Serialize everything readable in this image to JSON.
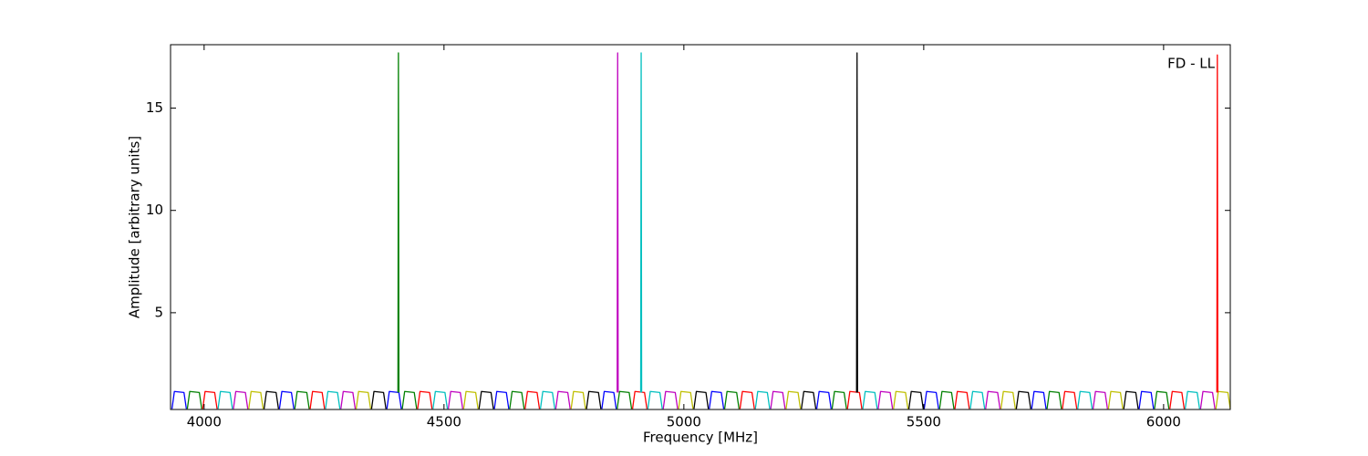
{
  "chart_data": {
    "type": "line",
    "x_label": "Frequency [MHz]",
    "y_label": "Amplitude [arbitrary units]",
    "annotation": "FD - LL",
    "xlim": [
      3930,
      6139
    ],
    "xticks": [
      4000,
      4500,
      5000,
      5500,
      6000
    ],
    "ylim": [
      0.27,
      18.1
    ],
    "yticks": [
      5,
      10,
      15
    ],
    "series": [
      {
        "color": "#0000ff",
        "x": [
          3933,
          3938,
          3958,
          3963,
          null,
          4157,
          4162,
          4182,
          4187,
          null,
          4381,
          4386,
          4406,
          4411,
          null,
          4605,
          4610,
          4630,
          4635,
          null,
          4829,
          4834,
          4854,
          4859,
          null,
          5053,
          5058,
          5078,
          5083,
          null,
          5277,
          5282,
          5302,
          5307,
          null,
          5501,
          5506,
          5526,
          5531,
          null,
          5725,
          5730,
          5750,
          5755,
          null,
          5949,
          5954,
          5974,
          5979
        ],
        "values": [
          0.3,
          1.15,
          1.1,
          0.3,
          null,
          0.3,
          1.15,
          1.1,
          0.3,
          null,
          0.3,
          1.15,
          1.1,
          0.3,
          null,
          0.3,
          1.15,
          1.1,
          0.3,
          null,
          0.3,
          1.15,
          1.1,
          0.3,
          null,
          0.3,
          1.15,
          1.1,
          0.3,
          null,
          0.3,
          1.15,
          1.1,
          0.3,
          null,
          0.3,
          1.15,
          1.1,
          0.3,
          null,
          0.3,
          1.15,
          1.1,
          0.3,
          null,
          0.3,
          1.15,
          1.1,
          0.3
        ]
      },
      {
        "color": "#008000",
        "x": [
          3965,
          3970,
          3990,
          3995,
          null,
          4189,
          4194,
          4214,
          4219,
          null,
          4413,
          4418,
          4438,
          4443,
          null,
          4637,
          4642,
          4662,
          4667,
          null,
          4861,
          4866,
          4886,
          4891,
          null,
          5085,
          5090,
          5110,
          5115,
          null,
          5309,
          5314,
          5334,
          5339,
          null,
          5533,
          5538,
          5558,
          5563,
          null,
          5757,
          5762,
          5782,
          5787,
          null,
          5981,
          5986,
          6006,
          6011
        ],
        "values": [
          0.3,
          1.15,
          1.1,
          0.3,
          null,
          0.3,
          1.15,
          1.1,
          0.3,
          null,
          0.3,
          1.15,
          1.1,
          0.3,
          null,
          0.3,
          1.15,
          1.1,
          0.3,
          null,
          0.3,
          1.15,
          1.1,
          0.3,
          null,
          0.3,
          1.15,
          1.1,
          0.3,
          null,
          0.3,
          1.15,
          1.1,
          0.3,
          null,
          0.3,
          1.15,
          1.1,
          0.3,
          null,
          0.3,
          1.15,
          1.1,
          0.3,
          null,
          0.3,
          1.15,
          1.1,
          0.3
        ]
      },
      {
        "color": "#ff0000",
        "x": [
          3997,
          4002,
          4022,
          4027,
          null,
          4221,
          4226,
          4246,
          4251,
          null,
          4445,
          4450,
          4470,
          4475,
          null,
          4669,
          4674,
          4694,
          4699,
          null,
          4893,
          4898,
          4918,
          4923,
          null,
          5117,
          5122,
          5142,
          5147,
          null,
          5341,
          5346,
          5366,
          5371,
          null,
          5565,
          5570,
          5590,
          5595,
          null,
          5789,
          5794,
          5814,
          5819,
          null,
          6013,
          6018,
          6038,
          6043
        ],
        "values": [
          0.3,
          1.15,
          1.1,
          0.3,
          null,
          0.3,
          1.15,
          1.1,
          0.3,
          null,
          0.3,
          1.15,
          1.1,
          0.3,
          null,
          0.3,
          1.15,
          1.1,
          0.3,
          null,
          0.3,
          1.15,
          1.1,
          0.3,
          null,
          0.3,
          1.15,
          1.1,
          0.3,
          null,
          0.3,
          1.15,
          1.1,
          0.3,
          null,
          0.3,
          1.15,
          1.1,
          0.3,
          null,
          0.3,
          1.15,
          1.1,
          0.3,
          null,
          0.3,
          1.15,
          1.1,
          0.3
        ]
      },
      {
        "color": "#00bfbf",
        "x": [
          4029,
          4034,
          4054,
          4059,
          null,
          4253,
          4258,
          4278,
          4283,
          null,
          4477,
          4482,
          4502,
          4507,
          null,
          4701,
          4706,
          4726,
          4731,
          null,
          4925,
          4930,
          4950,
          4955,
          null,
          5149,
          5154,
          5174,
          5179,
          null,
          5373,
          5378,
          5398,
          5403,
          null,
          5597,
          5602,
          5622,
          5627,
          null,
          5821,
          5826,
          5846,
          5851,
          null,
          6045,
          6050,
          6070,
          6075
        ],
        "values": [
          0.3,
          1.15,
          1.1,
          0.3,
          null,
          0.3,
          1.15,
          1.1,
          0.3,
          null,
          0.3,
          1.15,
          1.1,
          0.3,
          null,
          0.3,
          1.15,
          1.1,
          0.3,
          null,
          0.3,
          1.15,
          1.1,
          0.3,
          null,
          0.3,
          1.15,
          1.1,
          0.3,
          null,
          0.3,
          1.15,
          1.1,
          0.3,
          null,
          0.3,
          1.15,
          1.1,
          0.3,
          null,
          0.3,
          1.15,
          1.1,
          0.3,
          null,
          0.3,
          1.15,
          1.1,
          0.3
        ]
      },
      {
        "color": "#bf00bf",
        "x": [
          4061,
          4066,
          4086,
          4091,
          null,
          4285,
          4290,
          4310,
          4315,
          null,
          4509,
          4514,
          4534,
          4539,
          null,
          4733,
          4738,
          4758,
          4763,
          null,
          4957,
          4962,
          4982,
          4987,
          null,
          5181,
          5186,
          5206,
          5211,
          null,
          5405,
          5410,
          5430,
          5435,
          null,
          5629,
          5634,
          5654,
          5659,
          null,
          5853,
          5858,
          5878,
          5883,
          null,
          6077,
          6082,
          6102,
          6107
        ],
        "values": [
          0.3,
          1.15,
          1.1,
          0.3,
          null,
          0.3,
          1.15,
          1.1,
          0.3,
          null,
          0.3,
          1.15,
          1.1,
          0.3,
          null,
          0.3,
          1.15,
          1.1,
          0.3,
          null,
          0.3,
          1.15,
          1.1,
          0.3,
          null,
          0.3,
          1.15,
          1.1,
          0.3,
          null,
          0.3,
          1.15,
          1.1,
          0.3,
          null,
          0.3,
          1.15,
          1.1,
          0.3,
          null,
          0.3,
          1.15,
          1.1,
          0.3,
          null,
          0.3,
          1.15,
          1.1,
          0.3
        ]
      },
      {
        "color": "#bfbf00",
        "x": [
          4093,
          4098,
          4118,
          4123,
          null,
          4317,
          4322,
          4342,
          4347,
          null,
          4541,
          4546,
          4566,
          4571,
          null,
          4765,
          4770,
          4790,
          4795,
          null,
          4989,
          4994,
          5014,
          5019,
          null,
          5213,
          5218,
          5238,
          5243,
          null,
          5437,
          5442,
          5462,
          5467,
          null,
          5661,
          5666,
          5686,
          5691,
          null,
          5885,
          5890,
          5910,
          5915,
          null,
          6109,
          6114,
          6134,
          6139
        ],
        "values": [
          0.3,
          1.15,
          1.1,
          0.3,
          null,
          0.3,
          1.15,
          1.1,
          0.3,
          null,
          0.3,
          1.15,
          1.1,
          0.3,
          null,
          0.3,
          1.15,
          1.1,
          0.3,
          null,
          0.3,
          1.15,
          1.1,
          0.3,
          null,
          0.3,
          1.15,
          1.1,
          0.3,
          null,
          0.3,
          1.15,
          1.1,
          0.3,
          null,
          0.3,
          1.15,
          1.1,
          0.3,
          null,
          0.3,
          1.15,
          1.1,
          0.3,
          null,
          0.3,
          1.15,
          1.1,
          0.3
        ]
      },
      {
        "color": "#000000",
        "x": [
          4125,
          4130,
          4150,
          4155,
          null,
          4349,
          4354,
          4374,
          4379,
          null,
          4573,
          4578,
          4598,
          4603,
          null,
          4797,
          4802,
          4822,
          4827,
          null,
          5021,
          5026,
          5046,
          5051,
          null,
          5245,
          5250,
          5270,
          5275,
          null,
          5469,
          5474,
          5494,
          5499,
          null,
          5693,
          5698,
          5718,
          5723,
          null,
          5917,
          5922,
          5942,
          5947
        ],
        "values": [
          0.3,
          1.15,
          1.1,
          0.3,
          null,
          0.3,
          1.15,
          1.1,
          0.3,
          null,
          0.3,
          1.15,
          1.1,
          0.3,
          null,
          0.3,
          1.15,
          1.1,
          0.3,
          null,
          0.3,
          1.15,
          1.1,
          0.3,
          null,
          0.3,
          1.15,
          1.1,
          0.3,
          null,
          0.3,
          1.15,
          1.1,
          0.3,
          null,
          0.3,
          1.15,
          1.1,
          0.3,
          null,
          0.3,
          1.15,
          1.1,
          0.3
        ]
      },
      {
        "color": "#008000",
        "x": [
          4404,
          4405,
          4406
        ],
        "values": [
          1.1,
          17.7,
          1.1
        ]
      },
      {
        "color": "#bf00bf",
        "x": [
          4861,
          4862,
          4863
        ],
        "values": [
          1.1,
          17.7,
          1.1
        ]
      },
      {
        "color": "#00bfbf",
        "x": [
          4910,
          4911,
          4912
        ],
        "values": [
          1.1,
          17.7,
          1.1
        ]
      },
      {
        "color": "#000000",
        "x": [
          5360,
          5361,
          5362
        ],
        "values": [
          1.1,
          17.7,
          1.1
        ]
      },
      {
        "color": "#ff0000",
        "x": [
          6111,
          6112,
          6113
        ],
        "values": [
          1.1,
          17.6,
          1.1
        ]
      }
    ]
  }
}
